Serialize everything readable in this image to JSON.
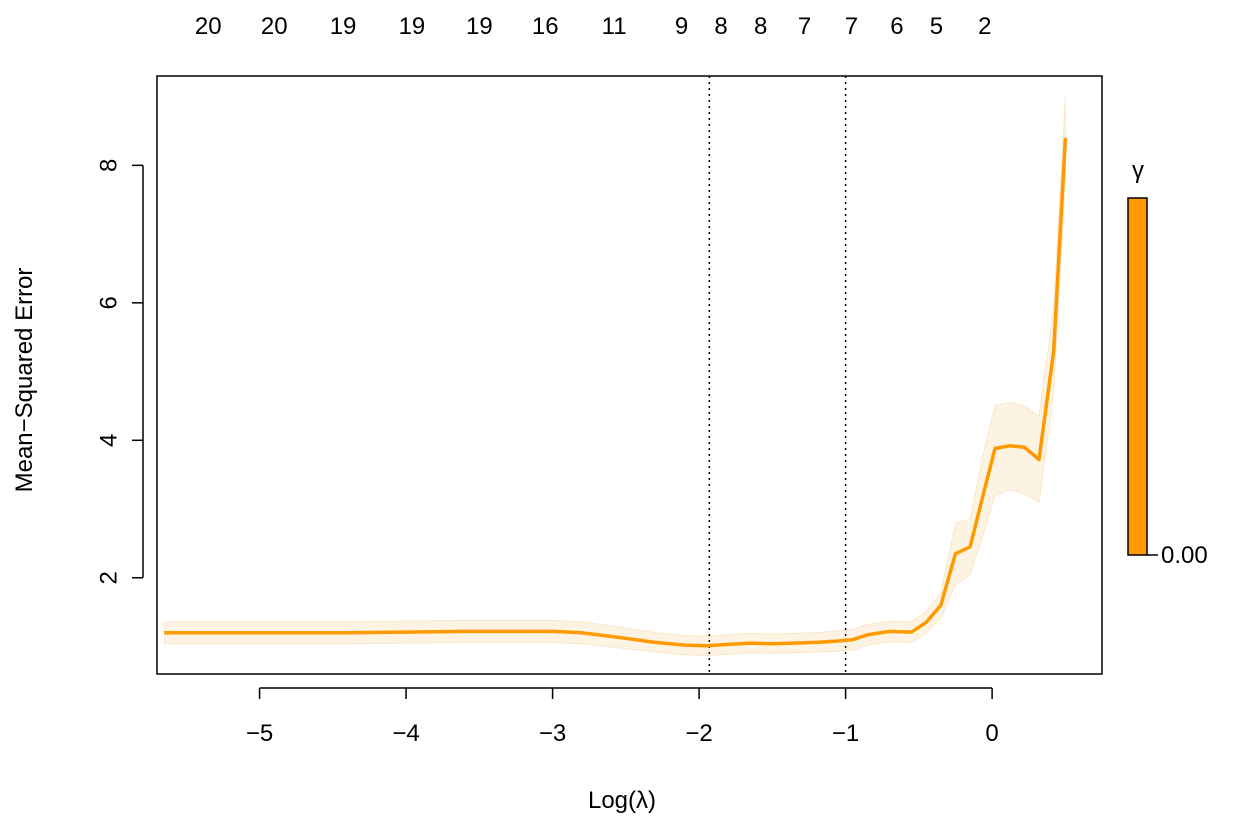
{
  "chart_data": {
    "type": "line",
    "title": "",
    "xlabel": "Log(λ)",
    "ylabel": "Mean−Squared Error",
    "xlim": [
      -5.7,
      0.75
    ],
    "ylim": [
      0.6,
      9.3
    ],
    "x_ticks": [
      -5,
      -4,
      -3,
      -2,
      -1,
      0
    ],
    "x_tick_labels": [
      "−5",
      "−4",
      "−3",
      "−2",
      "−1",
      "0"
    ],
    "y_ticks": [
      2,
      4,
      6,
      8
    ],
    "y_tick_labels": [
      "2",
      "4",
      "6",
      "8"
    ],
    "top_axis": {
      "positions": [
        -5.35,
        -4.9,
        -4.43,
        -3.96,
        -3.5,
        -3.05,
        -2.58,
        -2.12,
        -1.85,
        -1.58,
        -1.28,
        -0.96,
        -0.65,
        -0.38,
        -0.05
      ],
      "labels": [
        "20",
        "20",
        "19",
        "19",
        "19",
        "16",
        "11",
        "9",
        "8",
        "8",
        "7",
        "7",
        "6",
        "5",
        "2"
      ]
    },
    "reference_lines": [
      -1.93,
      -1.0
    ],
    "series": [
      {
        "color": "#FF9900",
        "band_color": "#FDF3E3",
        "points": [
          [
            -5.65,
            1.2
          ],
          [
            -5.2,
            1.2
          ],
          [
            -4.8,
            1.2
          ],
          [
            -4.4,
            1.2
          ],
          [
            -4.0,
            1.21
          ],
          [
            -3.6,
            1.22
          ],
          [
            -3.3,
            1.22
          ],
          [
            -3.0,
            1.22
          ],
          [
            -2.8,
            1.2
          ],
          [
            -2.5,
            1.12
          ],
          [
            -2.3,
            1.06
          ],
          [
            -2.1,
            1.02
          ],
          [
            -1.95,
            1.01
          ],
          [
            -1.8,
            1.03
          ],
          [
            -1.65,
            1.05
          ],
          [
            -1.5,
            1.04
          ],
          [
            -1.35,
            1.05
          ],
          [
            -1.2,
            1.06
          ],
          [
            -1.05,
            1.08
          ],
          [
            -0.95,
            1.1
          ],
          [
            -0.85,
            1.17
          ],
          [
            -0.7,
            1.22
          ],
          [
            -0.55,
            1.21
          ],
          [
            -0.45,
            1.35
          ],
          [
            -0.35,
            1.6
          ],
          [
            -0.25,
            2.35
          ],
          [
            -0.15,
            2.45
          ],
          [
            -0.05,
            3.3
          ],
          [
            0.02,
            3.88
          ],
          [
            0.12,
            3.92
          ],
          [
            0.22,
            3.9
          ],
          [
            0.32,
            3.72
          ],
          [
            0.42,
            5.3
          ],
          [
            0.5,
            8.4
          ]
        ],
        "lower": [
          [
            -5.65,
            1.04
          ],
          [
            -5.2,
            1.04
          ],
          [
            -4.8,
            1.04
          ],
          [
            -4.4,
            1.04
          ],
          [
            -4.0,
            1.05
          ],
          [
            -3.6,
            1.06
          ],
          [
            -3.3,
            1.06
          ],
          [
            -3.0,
            1.06
          ],
          [
            -2.8,
            1.04
          ],
          [
            -2.5,
            0.97
          ],
          [
            -2.3,
            0.92
          ],
          [
            -2.1,
            0.88
          ],
          [
            -1.95,
            0.87
          ],
          [
            -1.8,
            0.89
          ],
          [
            -1.65,
            0.91
          ],
          [
            -1.5,
            0.9
          ],
          [
            -1.35,
            0.91
          ],
          [
            -1.2,
            0.92
          ],
          [
            -1.05,
            0.93
          ],
          [
            -0.95,
            0.95
          ],
          [
            -0.85,
            1.02
          ],
          [
            -0.7,
            1.07
          ],
          [
            -0.55,
            1.06
          ],
          [
            -0.45,
            1.2
          ],
          [
            -0.35,
            1.42
          ],
          [
            -0.25,
            1.9
          ],
          [
            -0.15,
            2.05
          ],
          [
            -0.05,
            2.7
          ],
          [
            0.02,
            3.2
          ],
          [
            0.12,
            3.28
          ],
          [
            0.22,
            3.22
          ],
          [
            0.32,
            3.1
          ],
          [
            0.42,
            4.7
          ],
          [
            0.5,
            7.8
          ]
        ],
        "upper": [
          [
            -5.65,
            1.36
          ],
          [
            -5.2,
            1.36
          ],
          [
            -4.8,
            1.36
          ],
          [
            -4.4,
            1.36
          ],
          [
            -4.0,
            1.37
          ],
          [
            -3.6,
            1.38
          ],
          [
            -3.3,
            1.38
          ],
          [
            -3.0,
            1.38
          ],
          [
            -2.8,
            1.36
          ],
          [
            -2.5,
            1.27
          ],
          [
            -2.3,
            1.2
          ],
          [
            -2.1,
            1.16
          ],
          [
            -1.95,
            1.15
          ],
          [
            -1.8,
            1.17
          ],
          [
            -1.65,
            1.19
          ],
          [
            -1.5,
            1.18
          ],
          [
            -1.35,
            1.19
          ],
          [
            -1.2,
            1.2
          ],
          [
            -1.05,
            1.23
          ],
          [
            -0.95,
            1.25
          ],
          [
            -0.85,
            1.32
          ],
          [
            -0.7,
            1.37
          ],
          [
            -0.55,
            1.36
          ],
          [
            -0.45,
            1.5
          ],
          [
            -0.35,
            1.78
          ],
          [
            -0.25,
            2.8
          ],
          [
            -0.15,
            2.85
          ],
          [
            -0.05,
            3.9
          ],
          [
            0.02,
            4.5
          ],
          [
            0.12,
            4.55
          ],
          [
            0.22,
            4.5
          ],
          [
            0.32,
            4.34
          ],
          [
            0.42,
            5.9
          ],
          [
            0.5,
            9.0
          ]
        ]
      }
    ],
    "legend": {
      "title": "γ",
      "tick_label": "0.00",
      "color": "#FF9900",
      "placement": "right"
    }
  }
}
